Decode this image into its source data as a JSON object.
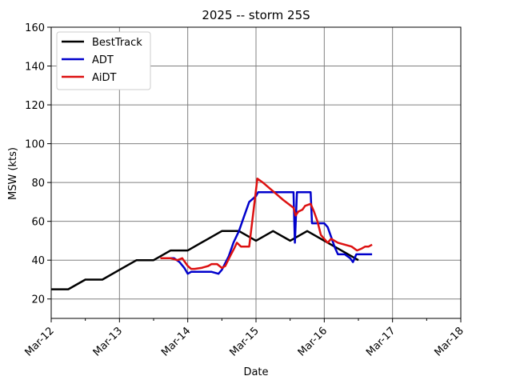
{
  "chart_data": {
    "type": "line",
    "title": "2025 -- storm 25S",
    "xlabel": "Date",
    "ylabel": "MSW (kts)",
    "x_unit": "days since Mar-12 00:00",
    "xlim": [
      0,
      6
    ],
    "ylim": [
      10,
      160
    ],
    "x_ticks": [
      {
        "value": 0,
        "label": "Mar-12"
      },
      {
        "value": 1,
        "label": "Mar-13"
      },
      {
        "value": 2,
        "label": "Mar-14"
      },
      {
        "value": 3,
        "label": "Mar-15"
      },
      {
        "value": 4,
        "label": "Mar-16"
      },
      {
        "value": 5,
        "label": "Mar-17"
      },
      {
        "value": 6,
        "label": "Mar-18"
      }
    ],
    "x_minor_ticks": [
      0.5,
      1.5,
      2.5,
      3.5,
      4.5,
      5.5
    ],
    "y_ticks": [
      {
        "value": 20,
        "label": "20"
      },
      {
        "value": 40,
        "label": "40"
      },
      {
        "value": 60,
        "label": "60"
      },
      {
        "value": 80,
        "label": "80"
      },
      {
        "value": 100,
        "label": "100"
      },
      {
        "value": 120,
        "label": "120"
      },
      {
        "value": 140,
        "label": "140"
      },
      {
        "value": 160,
        "label": "160"
      }
    ],
    "grid": true,
    "legend_position": "top-left",
    "series": [
      {
        "name": "BestTrack",
        "color": "#000000",
        "points": [
          [
            0,
            25
          ],
          [
            0.25,
            25
          ],
          [
            0.5,
            30
          ],
          [
            0.75,
            30
          ],
          [
            1.0,
            35
          ],
          [
            1.25,
            40
          ],
          [
            1.5,
            40
          ],
          [
            1.75,
            45
          ],
          [
            2.0,
            45
          ],
          [
            2.25,
            50
          ],
          [
            2.5,
            55
          ],
          [
            2.75,
            55
          ],
          [
            3.0,
            50
          ],
          [
            3.25,
            55
          ],
          [
            3.5,
            50
          ],
          [
            3.75,
            55
          ],
          [
            4.0,
            50
          ],
          [
            4.25,
            45
          ],
          [
            4.5,
            40
          ]
        ]
      },
      {
        "name": "ADT",
        "color": "#0000cc",
        "points": [
          [
            1.6,
            41
          ],
          [
            1.7,
            41
          ],
          [
            1.8,
            41
          ],
          [
            1.88,
            39
          ],
          [
            1.95,
            36
          ],
          [
            2.0,
            33
          ],
          [
            2.05,
            34
          ],
          [
            2.2,
            34
          ],
          [
            2.35,
            34
          ],
          [
            2.45,
            33
          ],
          [
            2.5,
            35
          ],
          [
            2.6,
            42
          ],
          [
            2.67,
            49
          ],
          [
            2.75,
            55
          ],
          [
            2.82,
            62
          ],
          [
            2.9,
            70
          ],
          [
            3.0,
            73
          ],
          [
            3.03,
            75
          ],
          [
            3.3,
            75
          ],
          [
            3.55,
            75
          ],
          [
            3.57,
            49
          ],
          [
            3.6,
            75
          ],
          [
            3.8,
            75
          ],
          [
            3.82,
            59
          ],
          [
            3.9,
            59
          ],
          [
            4.0,
            59
          ],
          [
            4.05,
            57
          ],
          [
            4.1,
            52
          ],
          [
            4.15,
            47
          ],
          [
            4.2,
            43
          ],
          [
            4.3,
            43
          ],
          [
            4.38,
            41
          ],
          [
            4.42,
            39
          ],
          [
            4.47,
            43
          ],
          [
            4.55,
            43
          ],
          [
            4.7,
            43
          ]
        ]
      },
      {
        "name": "AiDT",
        "color": "#dd1111",
        "points": [
          [
            1.6,
            41
          ],
          [
            1.75,
            41
          ],
          [
            1.85,
            40
          ],
          [
            1.92,
            41
          ],
          [
            2.0,
            37
          ],
          [
            2.05,
            35.5
          ],
          [
            2.1,
            35.5
          ],
          [
            2.2,
            36
          ],
          [
            2.3,
            37
          ],
          [
            2.35,
            38
          ],
          [
            2.43,
            38
          ],
          [
            2.5,
            36
          ],
          [
            2.55,
            37
          ],
          [
            2.62,
            42
          ],
          [
            2.68,
            46
          ],
          [
            2.72,
            49
          ],
          [
            2.78,
            47
          ],
          [
            2.9,
            47
          ],
          [
            3.02,
            82
          ],
          [
            3.1,
            80
          ],
          [
            3.2,
            77
          ],
          [
            3.3,
            74
          ],
          [
            3.4,
            71
          ],
          [
            3.55,
            67
          ],
          [
            3.58,
            63
          ],
          [
            3.62,
            65
          ],
          [
            3.68,
            66
          ],
          [
            3.72,
            68
          ],
          [
            3.8,
            69
          ],
          [
            3.85,
            65
          ],
          [
            3.9,
            60
          ],
          [
            3.95,
            53
          ],
          [
            4.05,
            49
          ],
          [
            4.1,
            51
          ],
          [
            4.15,
            50
          ],
          [
            4.2,
            49
          ],
          [
            4.3,
            48
          ],
          [
            4.4,
            47
          ],
          [
            4.48,
            45
          ],
          [
            4.55,
            46
          ],
          [
            4.6,
            47
          ],
          [
            4.65,
            47
          ],
          [
            4.7,
            48
          ]
        ]
      }
    ]
  }
}
